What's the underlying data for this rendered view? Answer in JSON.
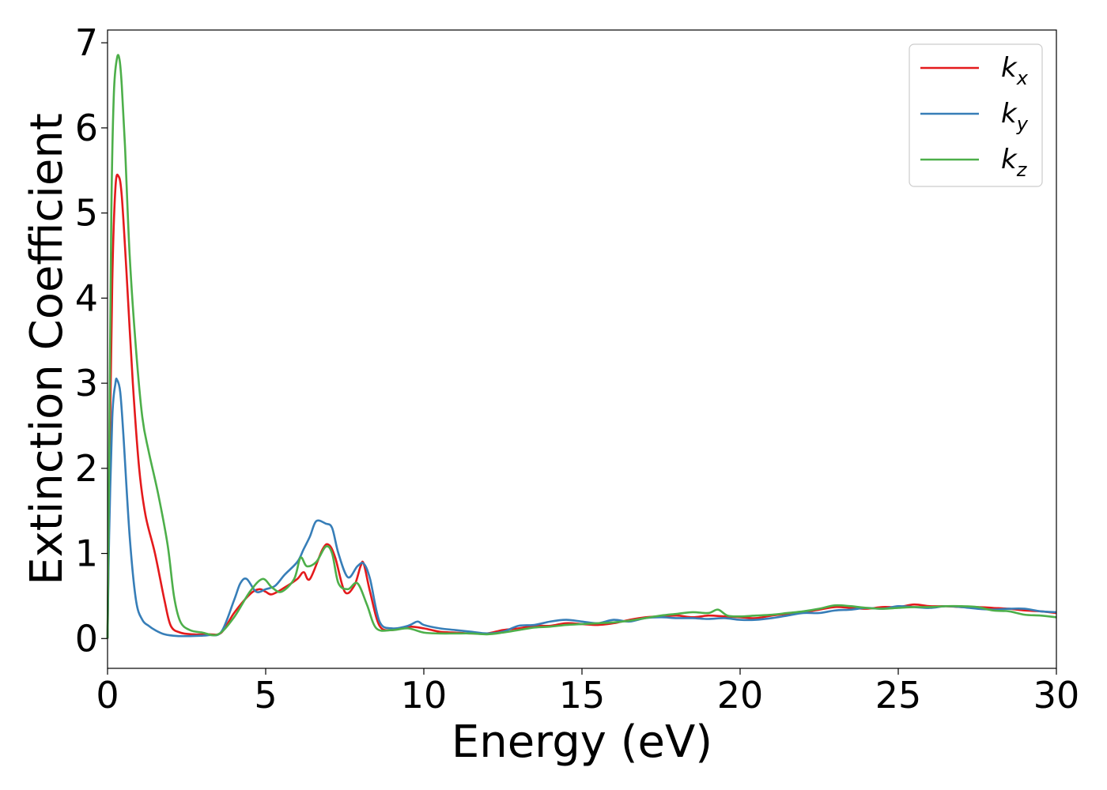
{
  "chart_data": {
    "type": "line",
    "xlabel": "Energy (eV)",
    "ylabel": "Extinction Coefficient",
    "xlim": [
      0,
      30
    ],
    "ylim": [
      -0.35,
      7.15
    ],
    "xticks": [
      0,
      5,
      10,
      15,
      20,
      25,
      30
    ],
    "yticks": [
      0,
      1,
      2,
      3,
      4,
      5,
      6,
      7
    ],
    "grid": false,
    "legend_position": "top-right",
    "series": [
      {
        "name": "k_x",
        "legend_main": "k",
        "legend_sub": "x",
        "color": "#e41a1c",
        "x": [
          0,
          0.05,
          0.15,
          0.25,
          0.35,
          0.45,
          0.6,
          0.8,
          1.0,
          1.2,
          1.5,
          1.8,
          2.0,
          2.3,
          2.7,
          3.2,
          3.6,
          4.0,
          4.5,
          4.8,
          5.0,
          5.2,
          5.6,
          6.0,
          6.2,
          6.4,
          6.8,
          7.0,
          7.2,
          7.5,
          7.8,
          8.0,
          8.1,
          8.3,
          8.6,
          9.0,
          9.5,
          10.0,
          10.5,
          11.0,
          11.5,
          12.0,
          12.5,
          13.0,
          13.5,
          14.0,
          14.5,
          15.0,
          15.5,
          16.0,
          16.5,
          17.0,
          17.5,
          18.0,
          18.5,
          19.0,
          19.5,
          20.0,
          20.5,
          21.0,
          21.5,
          22.0,
          22.5,
          23.0,
          23.5,
          24.0,
          24.5,
          25.0,
          25.5,
          26.0,
          26.5,
          27.0,
          27.5,
          28.0,
          28.5,
          29.0,
          29.5,
          30.0
        ],
        "y": [
          0,
          1.6,
          4.2,
          5.3,
          5.43,
          5.2,
          4.3,
          3.0,
          2.0,
          1.45,
          1.0,
          0.45,
          0.15,
          0.07,
          0.05,
          0.05,
          0.07,
          0.3,
          0.52,
          0.58,
          0.55,
          0.52,
          0.6,
          0.7,
          0.78,
          0.7,
          1.05,
          1.1,
          0.95,
          0.55,
          0.62,
          0.85,
          0.88,
          0.55,
          0.15,
          0.1,
          0.14,
          0.12,
          0.08,
          0.07,
          0.06,
          0.06,
          0.1,
          0.12,
          0.15,
          0.15,
          0.18,
          0.17,
          0.16,
          0.18,
          0.22,
          0.25,
          0.26,
          0.27,
          0.25,
          0.27,
          0.26,
          0.25,
          0.24,
          0.27,
          0.29,
          0.31,
          0.34,
          0.37,
          0.36,
          0.35,
          0.37,
          0.37,
          0.4,
          0.38,
          0.38,
          0.37,
          0.37,
          0.36,
          0.35,
          0.33,
          0.32,
          0.3
        ]
      },
      {
        "name": "k_y",
        "legend_main": "k",
        "legend_sub": "y",
        "color": "#377eb8",
        "x": [
          0,
          0.05,
          0.15,
          0.25,
          0.3,
          0.4,
          0.5,
          0.7,
          0.9,
          1.1,
          1.3,
          1.5,
          1.8,
          2.2,
          2.7,
          3.2,
          3.6,
          4.0,
          4.2,
          4.4,
          4.7,
          5.0,
          5.3,
          5.6,
          6.0,
          6.2,
          6.4,
          6.6,
          6.9,
          7.1,
          7.3,
          7.6,
          7.9,
          8.1,
          8.3,
          8.6,
          9.0,
          9.5,
          9.8,
          10.0,
          10.5,
          11.0,
          11.5,
          12.0,
          12.5,
          13.0,
          13.5,
          14.0,
          14.5,
          15.0,
          15.5,
          16.0,
          16.5,
          17.0,
          17.5,
          18.0,
          18.5,
          19.0,
          19.5,
          20.0,
          20.5,
          21.0,
          21.5,
          22.0,
          22.5,
          23.0,
          23.5,
          24.0,
          24.5,
          25.0,
          25.5,
          26.0,
          26.5,
          27.0,
          27.5,
          28.0,
          28.5,
          29.0,
          29.5,
          30.0
        ],
        "y": [
          0,
          1.2,
          2.6,
          3.0,
          3.04,
          2.9,
          2.4,
          1.2,
          0.45,
          0.22,
          0.15,
          0.1,
          0.05,
          0.03,
          0.03,
          0.04,
          0.08,
          0.45,
          0.65,
          0.7,
          0.55,
          0.58,
          0.62,
          0.75,
          0.9,
          1.05,
          1.2,
          1.38,
          1.35,
          1.3,
          1.0,
          0.72,
          0.85,
          0.88,
          0.7,
          0.2,
          0.12,
          0.15,
          0.2,
          0.16,
          0.12,
          0.1,
          0.08,
          0.06,
          0.08,
          0.15,
          0.16,
          0.2,
          0.22,
          0.2,
          0.18,
          0.22,
          0.2,
          0.24,
          0.25,
          0.24,
          0.24,
          0.23,
          0.24,
          0.22,
          0.22,
          0.24,
          0.27,
          0.3,
          0.3,
          0.33,
          0.34,
          0.36,
          0.35,
          0.38,
          0.37,
          0.36,
          0.38,
          0.37,
          0.35,
          0.34,
          0.35,
          0.35,
          0.32,
          0.31
        ]
      },
      {
        "name": "k_z",
        "legend_main": "k",
        "legend_sub": "z",
        "color": "#4daf4a",
        "x": [
          0,
          0.05,
          0.12,
          0.2,
          0.3,
          0.38,
          0.45,
          0.55,
          0.7,
          0.9,
          1.1,
          1.3,
          1.6,
          1.9,
          2.1,
          2.3,
          2.6,
          3.0,
          3.5,
          4.0,
          4.5,
          4.9,
          5.2,
          5.5,
          5.9,
          6.1,
          6.3,
          6.6,
          6.9,
          7.1,
          7.3,
          7.6,
          7.9,
          8.2,
          8.5,
          9.0,
          9.5,
          10.0,
          10.5,
          11.0,
          11.5,
          12.0,
          12.5,
          13.0,
          13.5,
          14.0,
          14.5,
          15.0,
          15.5,
          16.0,
          16.5,
          17.0,
          17.5,
          18.0,
          18.5,
          19.0,
          19.3,
          19.6,
          20.0,
          20.5,
          21.0,
          21.5,
          22.0,
          22.5,
          23.0,
          23.5,
          24.0,
          24.5,
          25.0,
          25.5,
          26.0,
          26.5,
          27.0,
          27.5,
          28.0,
          28.5,
          29.0,
          29.5,
          30.0
        ],
        "y": [
          0,
          2.0,
          5.0,
          6.4,
          6.82,
          6.8,
          6.5,
          5.8,
          4.5,
          3.4,
          2.6,
          2.2,
          1.7,
          1.1,
          0.5,
          0.2,
          0.1,
          0.07,
          0.05,
          0.25,
          0.55,
          0.7,
          0.6,
          0.55,
          0.7,
          0.95,
          0.85,
          0.9,
          1.08,
          1.0,
          0.65,
          0.58,
          0.65,
          0.4,
          0.12,
          0.1,
          0.12,
          0.07,
          0.06,
          0.06,
          0.06,
          0.05,
          0.07,
          0.1,
          0.13,
          0.14,
          0.16,
          0.17,
          0.18,
          0.19,
          0.21,
          0.24,
          0.27,
          0.29,
          0.31,
          0.3,
          0.34,
          0.27,
          0.26,
          0.27,
          0.28,
          0.3,
          0.32,
          0.35,
          0.39,
          0.38,
          0.36,
          0.35,
          0.36,
          0.37,
          0.37,
          0.38,
          0.38,
          0.37,
          0.33,
          0.32,
          0.28,
          0.27,
          0.25
        ]
      }
    ]
  }
}
